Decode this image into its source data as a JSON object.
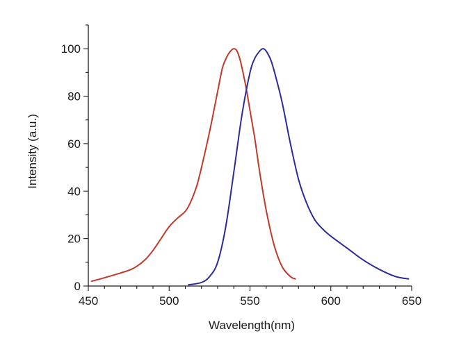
{
  "chart_data": {
    "type": "line",
    "title": "",
    "xlabel": "Wavelength(nm)",
    "ylabel": "Intensity (a.u.)",
    "xlim": [
      450,
      650
    ],
    "ylim": [
      0,
      110
    ],
    "xticks": [
      450,
      500,
      550,
      600,
      650
    ],
    "xtick_labels": [
      "450",
      "500",
      "550",
      "600",
      "650"
    ],
    "yticks": [
      0,
      20,
      40,
      60,
      80,
      100
    ],
    "ytick_labels": [
      "0",
      "20",
      "40",
      "60",
      "80",
      "100"
    ],
    "grid": false,
    "legend": "none",
    "series": [
      {
        "color": "#c0392b",
        "x": [
          452,
          460,
          470,
          478,
          485,
          490,
          495,
          500,
          505,
          510,
          513,
          517,
          520,
          525,
          530,
          533,
          536,
          538,
          540,
          542,
          544,
          546,
          548,
          550,
          553,
          556,
          560,
          565,
          570,
          575,
          578
        ],
        "y": [
          2,
          3.5,
          5.5,
          7.5,
          11,
          15,
          20,
          25,
          28.5,
          31.5,
          35,
          42,
          50,
          65,
          82,
          92,
          97,
          99,
          100,
          99,
          95,
          89,
          82,
          74,
          62,
          48,
          32,
          17,
          8,
          4,
          3
        ]
      },
      {
        "color": "#2b2b9b",
        "x": [
          512,
          520,
          525,
          530,
          535,
          540,
          545,
          550,
          553,
          556,
          558,
          560,
          563,
          566,
          570,
          575,
          580,
          585,
          590,
          595,
          600,
          610,
          620,
          630,
          640,
          648
        ],
        "y": [
          0.5,
          1.5,
          4,
          10,
          25,
          48,
          72,
          90,
          96,
          99,
          100,
          99,
          95,
          88,
          77,
          60,
          45,
          35,
          28,
          24,
          21,
          16,
          11,
          7,
          4,
          3
        ]
      }
    ]
  }
}
